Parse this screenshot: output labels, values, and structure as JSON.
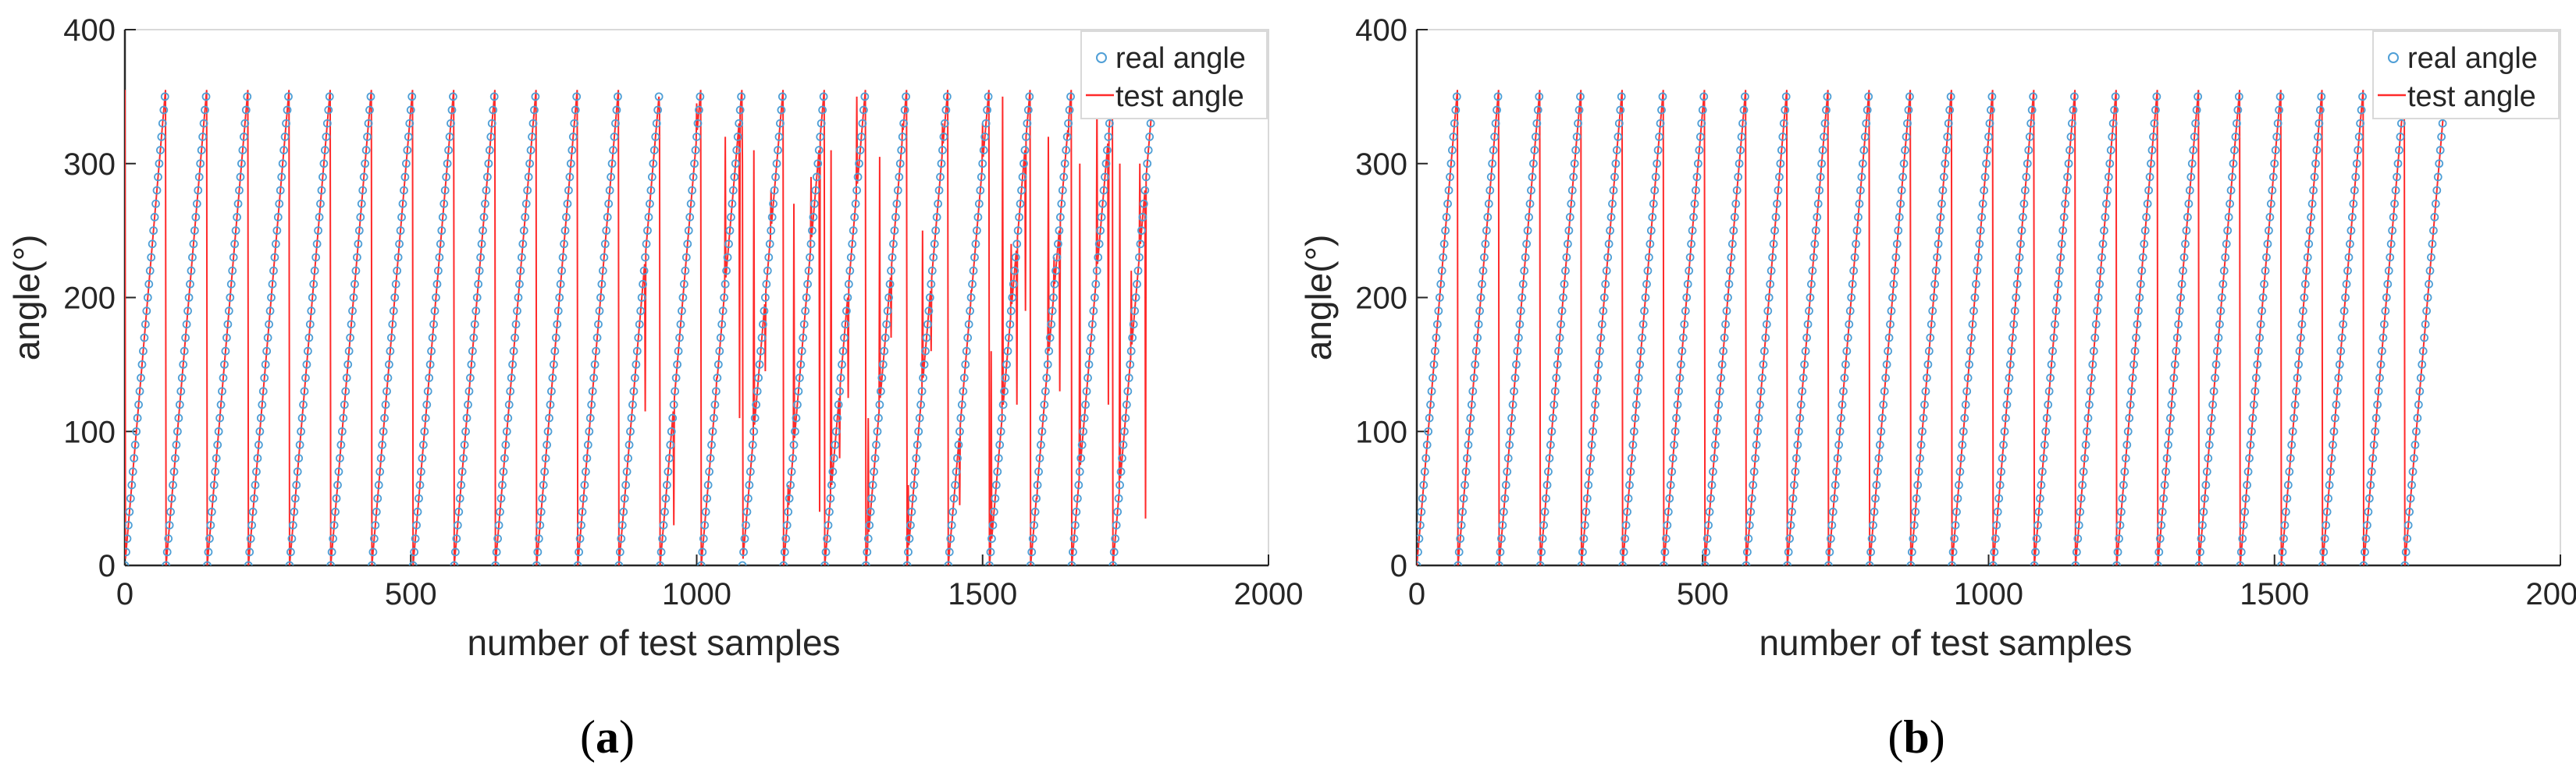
{
  "chart_data": [
    {
      "type": "scatter+line",
      "panel_label": "(a)",
      "xlabel": "number of test samples",
      "ylabel": "angle(°)",
      "xlim": [
        0,
        2000
      ],
      "ylim": [
        0,
        400
      ],
      "xticks": [
        0,
        500,
        1000,
        1500,
        2000
      ],
      "yticks": [
        0,
        100,
        200,
        300,
        400
      ],
      "grid": false,
      "legend_position": "top-right",
      "series": [
        {
          "name": "real angle",
          "style": "circle-markers",
          "color": "#4f9fd6",
          "pattern": "sawtooth",
          "cycle_length": 72,
          "num_samples": 1800,
          "step_deg": 5,
          "min": 0,
          "max": 355
        },
        {
          "name": "test angle",
          "style": "line",
          "color": "#ff2a2a",
          "follows": "real angle",
          "num_samples": 1800,
          "spikes": [
            [
              0,
              355
            ],
            [
              910,
              115
            ],
            [
              935,
              340
            ],
            [
              960,
              30
            ],
            [
              1000,
              345
            ],
            [
              1035,
              140
            ],
            [
              1050,
              320
            ],
            [
              1075,
              110
            ],
            [
              1080,
              300
            ],
            [
              1100,
              310
            ],
            [
              1120,
              145
            ],
            [
              1130,
              280
            ],
            [
              1160,
              60
            ],
            [
              1170,
              270
            ],
            [
              1200,
              290
            ],
            [
              1215,
              40
            ],
            [
              1235,
              310
            ],
            [
              1250,
              80
            ],
            [
              1265,
              125
            ],
            [
              1280,
              350
            ],
            [
              1300,
              110
            ],
            [
              1320,
              305
            ],
            [
              1340,
              170
            ],
            [
              1360,
              330
            ],
            [
              1370,
              60
            ],
            [
              1395,
              250
            ],
            [
              1410,
              160
            ],
            [
              1430,
              330
            ],
            [
              1460,
              45
            ],
            [
              1480,
              205
            ],
            [
              1500,
              330
            ],
            [
              1515,
              160
            ],
            [
              1535,
              350
            ],
            [
              1550,
              240
            ],
            [
              1560,
              120
            ],
            [
              1575,
              190
            ],
            [
              1595,
              50
            ],
            [
              1615,
              320
            ],
            [
              1625,
              230
            ],
            [
              1635,
              130
            ],
            [
              1650,
              320
            ],
            [
              1670,
              300
            ],
            [
              1680,
              120
            ],
            [
              1700,
              350
            ],
            [
              1720,
              120
            ],
            [
              1740,
              300
            ],
            [
              1760,
              220
            ],
            [
              1775,
              300
            ],
            [
              1785,
              35
            ],
            [
              1800,
              185
            ]
          ]
        }
      ]
    },
    {
      "type": "scatter+line",
      "panel_label": "(b)",
      "xlabel": "number of test samples",
      "ylabel": "angle(°)",
      "xlim": [
        0,
        2000
      ],
      "ylim": [
        0,
        400
      ],
      "xticks": [
        0,
        500,
        1000,
        1500,
        2000
      ],
      "yticks": [
        0,
        100,
        200,
        300,
        400
      ],
      "grid": false,
      "legend_position": "top-right",
      "series": [
        {
          "name": "real angle",
          "style": "circle-markers",
          "color": "#4f9fd6",
          "pattern": "sawtooth",
          "cycle_length": 72,
          "num_samples": 1800,
          "step_deg": 5,
          "min": 0,
          "max": 355
        },
        {
          "name": "test angle",
          "style": "line",
          "color": "#ff2a2a",
          "follows": "real angle",
          "num_samples": 1800,
          "spikes": []
        }
      ]
    }
  ]
}
